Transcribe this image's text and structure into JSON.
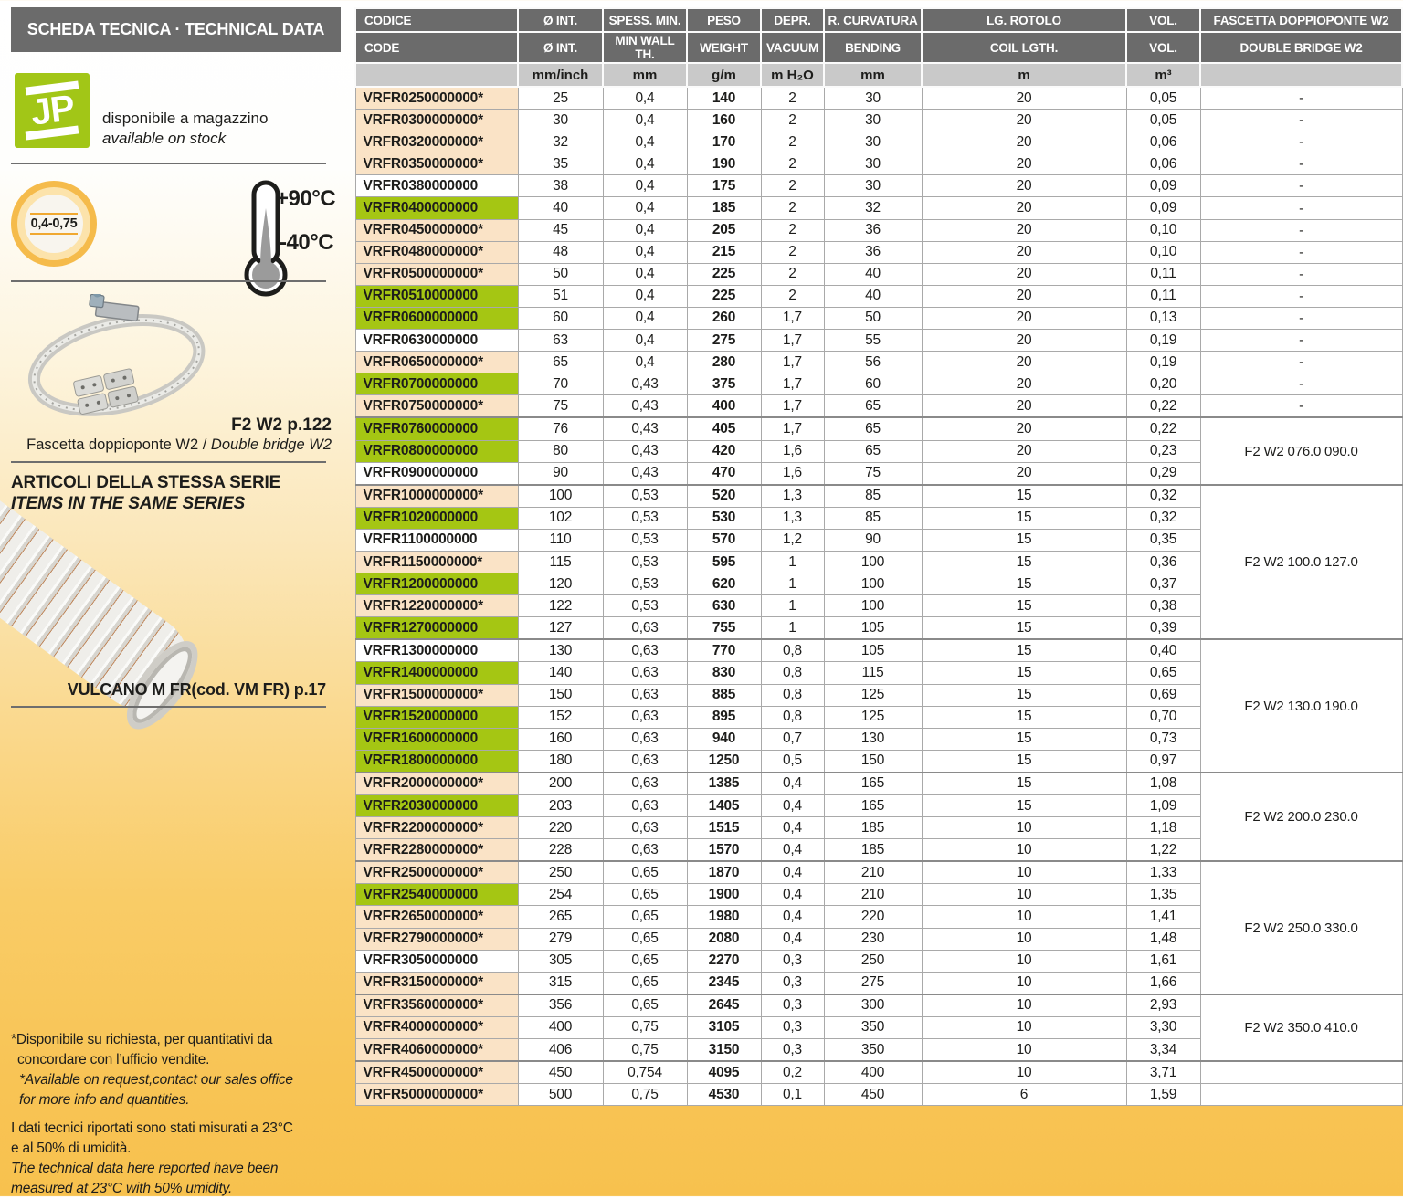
{
  "page": {
    "title_bar": "SCHEDA TECNICA · TECHNICAL DATA"
  },
  "colors": {
    "header_gray": "#6b6b6b",
    "units_gray": "#c9c9c9",
    "row_green": "#a5c613",
    "row_peach": "#fae3c6",
    "jp_green": "#a2c617",
    "ring_orange": "#f5bb4b",
    "page_bottom": "#f7c14e"
  },
  "sidebar": {
    "jp_logo_text": "JP",
    "stock_line_it": "disponibile a magazzino",
    "stock_line_en": "available on stock",
    "wall_thickness_range": "0,4-0,75",
    "temp_max": "+90°C",
    "temp_min": "-40°C",
    "clamp_page_ref": "F2 W2 p.122",
    "clamp_caption_it": "Fascetta doppioponte W2 / ",
    "clamp_caption_en": "Double bridge W2",
    "series_title_it": "ARTICOLI DELLA STESSA SERIE",
    "series_title_en": "ITEMS IN THE SAME SERIES",
    "series_item_ref": "VULCANO M FR(cod. VM FR) p.17",
    "notes": {
      "a1": "*Disponibile su richiesta, per quantitativi da",
      "a2": "concordare con l’ufficio vendite.",
      "a3": "*Available on request,contact our sales office",
      "a4": "for more info and quantities.",
      "b1": "I dati tecnici riportati sono stati misurati a 23°C",
      "b2": "e al 50% di umidità.",
      "b3": "The technical data here reported have been",
      "b4": "measured at 23°C with 50% umidity."
    }
  },
  "table": {
    "header": {
      "row1": [
        "CODICE",
        "Ø INT.",
        "SPESS. MIN.",
        "PESO",
        "DEPR.",
        "R. CURVATURA",
        "LG. ROTOLO",
        "VOL.",
        "FASCETTA DOPPIOPONTE W2"
      ],
      "row2": [
        "CODE",
        "Ø INT.",
        "MIN WALL TH.",
        "WEIGHT",
        "VACUUM",
        "BENDING",
        "COIL LGTH.",
        "VOL.",
        "DOUBLE BRIDGE W2"
      ],
      "units": [
        "",
        "mm/inch",
        "mm",
        "g/m",
        "m H₂O",
        "mm",
        "m",
        "m³",
        ""
      ]
    },
    "rows": [
      {
        "code": "VRFR0250000000*",
        "bg": "peach",
        "din": "25",
        "wall": "0,4",
        "wt": "140",
        "vac": "2",
        "bend": "30",
        "coil": "20",
        "vol": "0,05",
        "fas": "-",
        "span": 1
      },
      {
        "code": "VRFR0300000000*",
        "bg": "peach",
        "din": "30",
        "wall": "0,4",
        "wt": "160",
        "vac": "2",
        "bend": "30",
        "coil": "20",
        "vol": "0,05",
        "fas": "-",
        "span": 1
      },
      {
        "code": "VRFR0320000000*",
        "bg": "peach",
        "din": "32",
        "wall": "0,4",
        "wt": "170",
        "vac": "2",
        "bend": "30",
        "coil": "20",
        "vol": "0,06",
        "fas": "-",
        "span": 1
      },
      {
        "code": "VRFR0350000000*",
        "bg": "peach",
        "din": "35",
        "wall": "0,4",
        "wt": "190",
        "vac": "2",
        "bend": "30",
        "coil": "20",
        "vol": "0,06",
        "fas": "-",
        "span": 1
      },
      {
        "code": "VRFR0380000000",
        "bg": "white",
        "din": "38",
        "wall": "0,4",
        "wt": "175",
        "vac": "2",
        "bend": "30",
        "coil": "20",
        "vol": "0,09",
        "fas": "-",
        "span": 1
      },
      {
        "code": "VRFR0400000000",
        "bg": "green",
        "din": "40",
        "wall": "0,4",
        "wt": "185",
        "vac": "2",
        "bend": "32",
        "coil": "20",
        "vol": "0,09",
        "fas": "-",
        "span": 1
      },
      {
        "code": "VRFR0450000000*",
        "bg": "peach",
        "din": "45",
        "wall": "0,4",
        "wt": "205",
        "vac": "2",
        "bend": "36",
        "coil": "20",
        "vol": "0,10",
        "fas": "-",
        "span": 1
      },
      {
        "code": "VRFR0480000000*",
        "bg": "peach",
        "din": "48",
        "wall": "0,4",
        "wt": "215",
        "vac": "2",
        "bend": "36",
        "coil": "20",
        "vol": "0,10",
        "fas": "-",
        "span": 1
      },
      {
        "code": "VRFR0500000000*",
        "bg": "peach",
        "din": "50",
        "wall": "0,4",
        "wt": "225",
        "vac": "2",
        "bend": "40",
        "coil": "20",
        "vol": "0,11",
        "fas": "-",
        "span": 1
      },
      {
        "code": "VRFR0510000000",
        "bg": "green",
        "din": "51",
        "wall": "0,4",
        "wt": "225",
        "vac": "2",
        "bend": "40",
        "coil": "20",
        "vol": "0,11",
        "fas": "-",
        "span": 1
      },
      {
        "code": "VRFR0600000000",
        "bg": "green",
        "din": "60",
        "wall": "0,4",
        "wt": "260",
        "vac": "1,7",
        "bend": "50",
        "coil": "20",
        "vol": "0,13",
        "fas": "-",
        "span": 1
      },
      {
        "code": "VRFR0630000000",
        "bg": "white",
        "din": "63",
        "wall": "0,4",
        "wt": "275",
        "vac": "1,7",
        "bend": "55",
        "coil": "20",
        "vol": "0,19",
        "fas": "-",
        "span": 1
      },
      {
        "code": "VRFR0650000000*",
        "bg": "peach",
        "din": "65",
        "wall": "0,4",
        "wt": "280",
        "vac": "1,7",
        "bend": "56",
        "coil": "20",
        "vol": "0,19",
        "fas": "-",
        "span": 1
      },
      {
        "code": "VRFR0700000000",
        "bg": "green",
        "din": "70",
        "wall": "0,43",
        "wt": "375",
        "vac": "1,7",
        "bend": "60",
        "coil": "20",
        "vol": "0,20",
        "fas": "-",
        "span": 1
      },
      {
        "code": "VRFR0750000000*",
        "bg": "peach",
        "din": "75",
        "wall": "0,43",
        "wt": "400",
        "vac": "1,7",
        "bend": "65",
        "coil": "20",
        "vol": "0,22",
        "fas": "-",
        "span": 1
      },
      {
        "code": "VRFR0760000000",
        "bg": "green",
        "din": "76",
        "wall": "0,43",
        "wt": "405",
        "vac": "1,7",
        "bend": "65",
        "coil": "20",
        "vol": "0,22",
        "fas": "F2 W2 076.0 090.0",
        "span": 3,
        "grp": true
      },
      {
        "code": "VRFR0800000000",
        "bg": "green",
        "din": "80",
        "wall": "0,43",
        "wt": "420",
        "vac": "1,6",
        "bend": "65",
        "coil": "20",
        "vol": "0,23"
      },
      {
        "code": "VRFR0900000000",
        "bg": "white",
        "din": "90",
        "wall": "0,43",
        "wt": "470",
        "vac": "1,6",
        "bend": "75",
        "coil": "20",
        "vol": "0,29"
      },
      {
        "code": "VRFR1000000000*",
        "bg": "peach",
        "din": "100",
        "wall": "0,53",
        "wt": "520",
        "vac": "1,3",
        "bend": "85",
        "coil": "15",
        "vol": "0,32",
        "fas": "F2 W2 100.0 127.0",
        "span": 7,
        "grp": true
      },
      {
        "code": "VRFR1020000000",
        "bg": "green",
        "din": "102",
        "wall": "0,53",
        "wt": "530",
        "vac": "1,3",
        "bend": "85",
        "coil": "15",
        "vol": "0,32"
      },
      {
        "code": "VRFR1100000000",
        "bg": "white",
        "din": "110",
        "wall": "0,53",
        "wt": "570",
        "vac": "1,2",
        "bend": "90",
        "coil": "15",
        "vol": "0,35"
      },
      {
        "code": "VRFR1150000000*",
        "bg": "peach",
        "din": "115",
        "wall": "0,53",
        "wt": "595",
        "vac": "1",
        "bend": "100",
        "coil": "15",
        "vol": "0,36"
      },
      {
        "code": "VRFR1200000000",
        "bg": "green",
        "din": "120",
        "wall": "0,53",
        "wt": "620",
        "vac": "1",
        "bend": "100",
        "coil": "15",
        "vol": "0,37"
      },
      {
        "code": "VRFR1220000000*",
        "bg": "peach",
        "din": "122",
        "wall": "0,53",
        "wt": "630",
        "vac": "1",
        "bend": "100",
        "coil": "15",
        "vol": "0,38"
      },
      {
        "code": "VRFR1270000000",
        "bg": "green",
        "din": "127",
        "wall": "0,63",
        "wt": "755",
        "vac": "1",
        "bend": "105",
        "coil": "15",
        "vol": "0,39"
      },
      {
        "code": "VRFR1300000000",
        "bg": "white",
        "din": "130",
        "wall": "0,63",
        "wt": "770",
        "vac": "0,8",
        "bend": "105",
        "coil": "15",
        "vol": "0,40",
        "fas": "F2 W2 130.0 190.0",
        "span": 6,
        "grp": true
      },
      {
        "code": "VRFR1400000000",
        "bg": "green",
        "din": "140",
        "wall": "0,63",
        "wt": "830",
        "vac": "0,8",
        "bend": "115",
        "coil": "15",
        "vol": "0,65"
      },
      {
        "code": "VRFR1500000000*",
        "bg": "peach",
        "din": "150",
        "wall": "0,63",
        "wt": "885",
        "vac": "0,8",
        "bend": "125",
        "coil": "15",
        "vol": "0,69"
      },
      {
        "code": "VRFR1520000000",
        "bg": "green",
        "din": "152",
        "wall": "0,63",
        "wt": "895",
        "vac": "0,8",
        "bend": "125",
        "coil": "15",
        "vol": "0,70"
      },
      {
        "code": "VRFR1600000000",
        "bg": "green",
        "din": "160",
        "wall": "0,63",
        "wt": "940",
        "vac": "0,7",
        "bend": "130",
        "coil": "15",
        "vol": "0,73"
      },
      {
        "code": "VRFR1800000000",
        "bg": "green",
        "din": "180",
        "wall": "0,63",
        "wt": "1250",
        "vac": "0,5",
        "bend": "150",
        "coil": "15",
        "vol": "0,97"
      },
      {
        "code": "VRFR2000000000*",
        "bg": "peach",
        "din": "200",
        "wall": "0,63",
        "wt": "1385",
        "vac": "0,4",
        "bend": "165",
        "coil": "15",
        "vol": "1,08",
        "fas": "F2 W2 200.0 230.0",
        "span": 4,
        "grp": true
      },
      {
        "code": "VRFR2030000000",
        "bg": "green",
        "din": "203",
        "wall": "0,63",
        "wt": "1405",
        "vac": "0,4",
        "bend": "165",
        "coil": "15",
        "vol": "1,09"
      },
      {
        "code": "VRFR2200000000*",
        "bg": "peach",
        "din": "220",
        "wall": "0,63",
        "wt": "1515",
        "vac": "0,4",
        "bend": "185",
        "coil": "10",
        "vol": "1,18"
      },
      {
        "code": "VRFR2280000000*",
        "bg": "peach",
        "din": "228",
        "wall": "0,63",
        "wt": "1570",
        "vac": "0,4",
        "bend": "185",
        "coil": "10",
        "vol": "1,22"
      },
      {
        "code": "VRFR2500000000*",
        "bg": "peach",
        "din": "250",
        "wall": "0,65",
        "wt": "1870",
        "vac": "0,4",
        "bend": "210",
        "coil": "10",
        "vol": "1,33",
        "fas": "F2 W2 250.0 330.0",
        "span": 6,
        "grp": true
      },
      {
        "code": "VRFR2540000000",
        "bg": "green",
        "din": "254",
        "wall": "0,65",
        "wt": "1900",
        "vac": "0,4",
        "bend": "210",
        "coil": "10",
        "vol": "1,35"
      },
      {
        "code": "VRFR2650000000*",
        "bg": "peach",
        "din": "265",
        "wall": "0,65",
        "wt": "1980",
        "vac": "0,4",
        "bend": "220",
        "coil": "10",
        "vol": "1,41"
      },
      {
        "code": "VRFR2790000000*",
        "bg": "peach",
        "din": "279",
        "wall": "0,65",
        "wt": "2080",
        "vac": "0,4",
        "bend": "230",
        "coil": "10",
        "vol": "1,48"
      },
      {
        "code": "VRFR3050000000",
        "bg": "white",
        "din": "305",
        "wall": "0,65",
        "wt": "2270",
        "vac": "0,3",
        "bend": "250",
        "coil": "10",
        "vol": "1,61"
      },
      {
        "code": "VRFR3150000000*",
        "bg": "peach",
        "din": "315",
        "wall": "0,65",
        "wt": "2345",
        "vac": "0,3",
        "bend": "275",
        "coil": "10",
        "vol": "1,66"
      },
      {
        "code": "VRFR3560000000*",
        "bg": "peach",
        "din": "356",
        "wall": "0,65",
        "wt": "2645",
        "vac": "0,3",
        "bend": "300",
        "coil": "10",
        "vol": "2,93",
        "fas": "F2 W2 350.0 410.0",
        "span": 3,
        "grp": true
      },
      {
        "code": "VRFR4000000000*",
        "bg": "peach",
        "din": "400",
        "wall": "0,75",
        "wt": "3105",
        "vac": "0,3",
        "bend": "350",
        "coil": "10",
        "vol": "3,30"
      },
      {
        "code": "VRFR4060000000*",
        "bg": "peach",
        "din": "406",
        "wall": "0,75",
        "wt": "3150",
        "vac": "0,3",
        "bend": "350",
        "coil": "10",
        "vol": "3,34"
      },
      {
        "code": "VRFR4500000000*",
        "bg": "peach",
        "din": "450",
        "wall": "0,754",
        "wt": "4095",
        "vac": "0,2",
        "bend": "400",
        "coil": "10",
        "vol": "3,71",
        "fas": "",
        "span": 1,
        "grp": true
      },
      {
        "code": "VRFR5000000000*",
        "bg": "peach",
        "din": "500",
        "wall": "0,75",
        "wt": "4530",
        "vac": "0,1",
        "bend": "450",
        "coil": "6",
        "vol": "1,59",
        "fas": "",
        "span": 1
      }
    ]
  }
}
